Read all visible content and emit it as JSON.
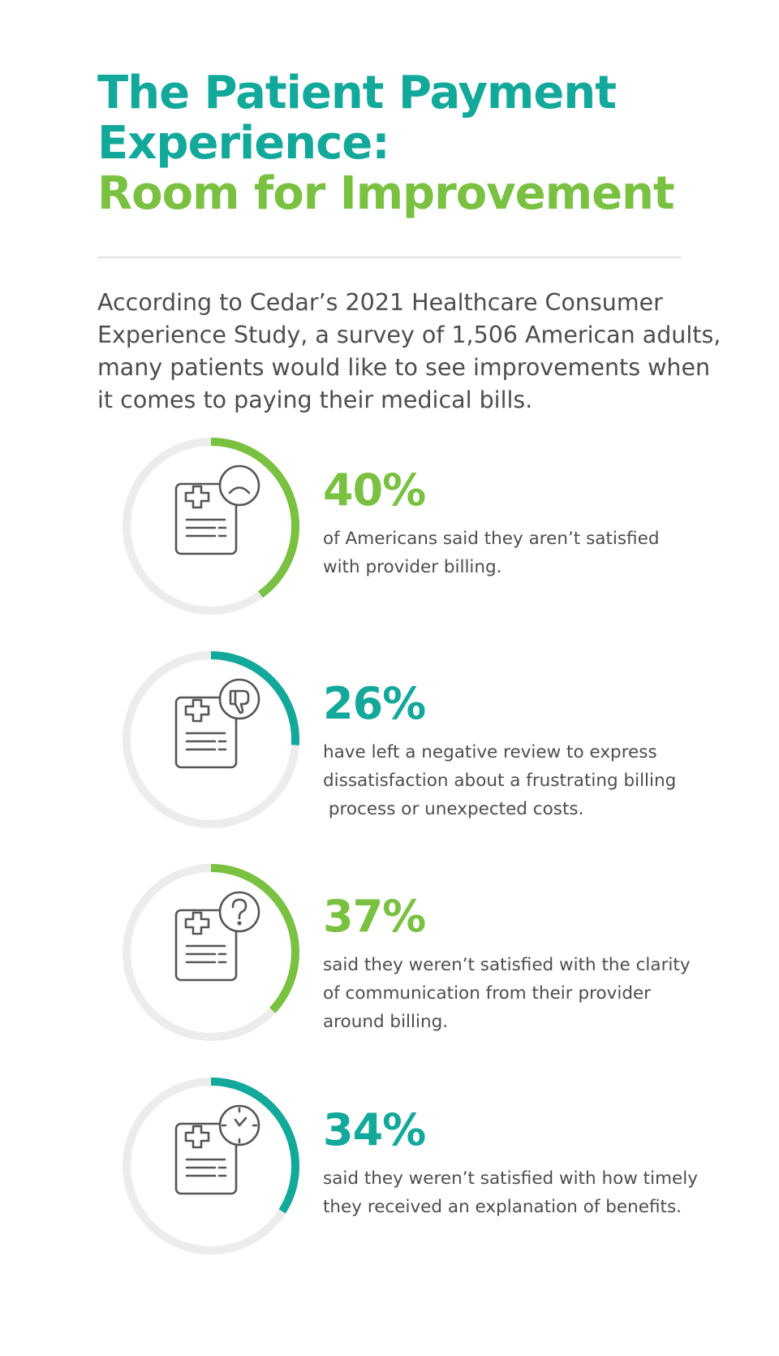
{
  "title": {
    "line1": "The Patient Payment",
    "line2": "Experience:",
    "line3": "Room for Improvement"
  },
  "intro": {
    "lines": [
      "According to Cedar’s 2021 Healthcare Consumer",
      "Experience Study, a survey of 1,506 American adults,",
      "many patients would like to see improvements when",
      "it comes to paying their medical bills."
    ]
  },
  "colors": {
    "teal": "#12a89a",
    "green": "#7ac142",
    "track": "#ececec",
    "text": "#4d4d4d",
    "icon": "#555555"
  },
  "stats": [
    {
      "value": 40,
      "percent_label": "40%",
      "accent": "green",
      "icon": "sad-face-icon",
      "desc": [
        "of Americans said they aren’t satisfied",
        "with provider billing."
      ]
    },
    {
      "value": 26,
      "percent_label": "26%",
      "accent": "teal",
      "icon": "thumbs-down-icon",
      "desc": [
        "have left a negative review to express",
        "dissatisfaction about a frustrating billing",
        " process or unexpected costs."
      ]
    },
    {
      "value": 37,
      "percent_label": "37%",
      "accent": "green",
      "icon": "question-mark-icon",
      "desc": [
        "said they weren’t satisfied with the clarity",
        "of communication from their provider",
        "around billing."
      ]
    },
    {
      "value": 34,
      "percent_label": "34%",
      "accent": "teal",
      "icon": "clock-icon",
      "desc": [
        "said they weren’t satisfied with how timely",
        "they received an explanation of benefits."
      ]
    }
  ]
}
